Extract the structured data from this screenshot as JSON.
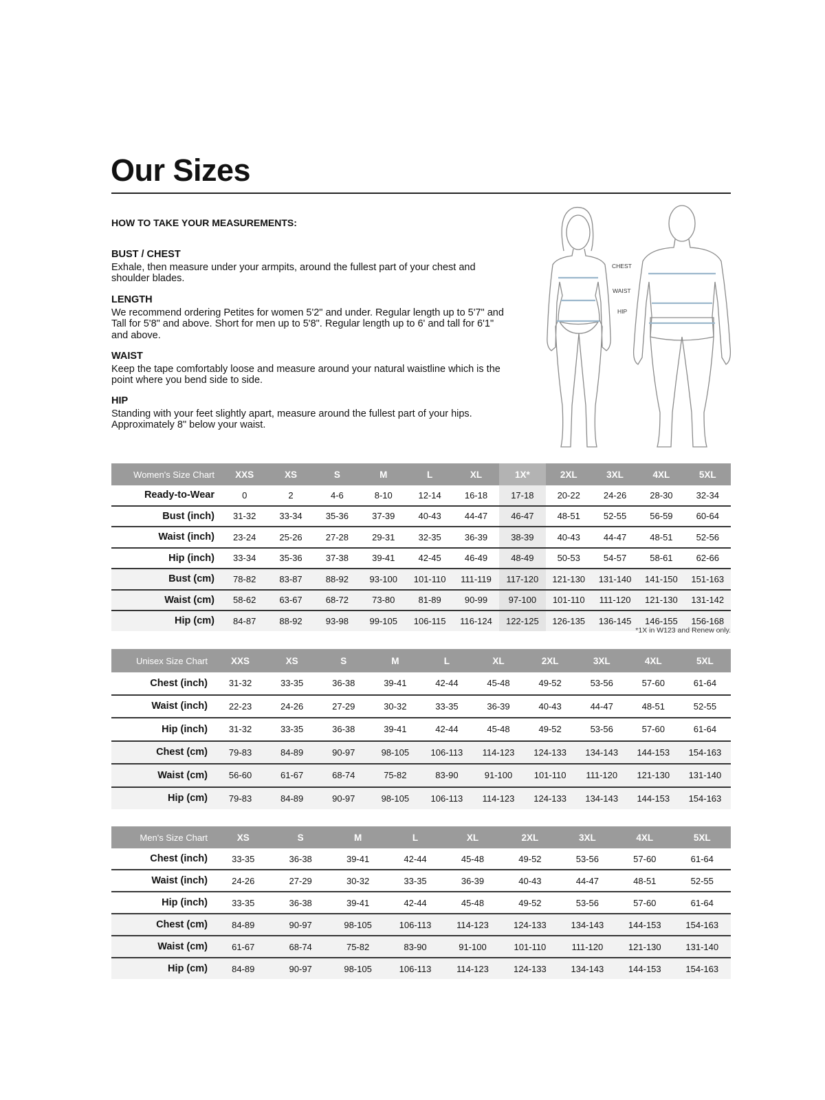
{
  "title": "Our Sizes",
  "how_to": "HOW TO TAKE YOUR MEASUREMENTS:",
  "sections": [
    {
      "heading": "BUST / CHEST",
      "text": "Exhale, then measure under your armpits, around the fullest part of your chest and shoulder blades."
    },
    {
      "heading": "LENGTH",
      "text": "We recommend ordering Petites for women 5'2\" and under. Regular length up to 5'7\" and Tall for 5'8\" and above. Short for men up to 5'8\". Regular length up to 6' and tall for 6'1\" and above."
    },
    {
      "heading": "WAIST",
      "text": "Keep the tape comfortably loose and measure around your natural waistline which is the point where you bend side to side."
    },
    {
      "heading": "HIP",
      "text": "Standing with your feet slightly apart, measure around the fullest part of your hips. Approximately 8\" below your waist."
    }
  ],
  "figure_labels": {
    "chest": "CHEST",
    "waist": "WAIST",
    "hip": "HIP"
  },
  "colors": {
    "header_bg": "#9b9b9b",
    "cm_row_bg": "#f2f2f2",
    "highlight": "#ebebeb",
    "measure_line": "#9bb7cc"
  },
  "tables": {
    "women": {
      "label": "Women's Size Chart",
      "highlight_column": "1X*",
      "columns": [
        "XXS",
        "XS",
        "S",
        "M",
        "L",
        "XL",
        "1X*",
        "2XL",
        "3XL",
        "4XL",
        "5XL"
      ],
      "rows": [
        {
          "label": "Ready-to-Wear",
          "values": [
            "0",
            "2",
            "4-6",
            "8-10",
            "12-14",
            "16-18",
            "17-18",
            "20-22",
            "24-26",
            "28-30",
            "32-34"
          ]
        },
        {
          "label": "Bust (inch)",
          "values": [
            "31-32",
            "33-34",
            "35-36",
            "37-39",
            "40-43",
            "44-47",
            "46-47",
            "48-51",
            "52-55",
            "56-59",
            "60-64"
          ]
        },
        {
          "label": "Waist (inch)",
          "values": [
            "23-24",
            "25-26",
            "27-28",
            "29-31",
            "32-35",
            "36-39",
            "38-39",
            "40-43",
            "44-47",
            "48-51",
            "52-56"
          ]
        },
        {
          "label": "Hip (inch)",
          "values": [
            "33-34",
            "35-36",
            "37-38",
            "39-41",
            "42-45",
            "46-49",
            "48-49",
            "50-53",
            "54-57",
            "58-61",
            "62-66"
          ]
        },
        {
          "label": "Bust (cm)",
          "values": [
            "78-82",
            "83-87",
            "88-92",
            "93-100",
            "101-110",
            "111-119",
            "117-120",
            "121-130",
            "131-140",
            "141-150",
            "151-163"
          ]
        },
        {
          "label": "Waist (cm)",
          "values": [
            "58-62",
            "63-67",
            "68-72",
            "73-80",
            "81-89",
            "90-99",
            "97-100",
            "101-110",
            "111-120",
            "121-130",
            "131-142"
          ]
        },
        {
          "label": "Hip (cm)",
          "values": [
            "84-87",
            "88-92",
            "93-98",
            "99-105",
            "106-115",
            "116-124",
            "122-125",
            "126-135",
            "136-145",
            "146-155",
            "156-168"
          ]
        }
      ],
      "footnote": "*1X in W123 and Renew only."
    },
    "unisex": {
      "label": "Unisex Size Chart",
      "columns": [
        "XXS",
        "XS",
        "S",
        "M",
        "L",
        "XL",
        "2XL",
        "3XL",
        "4XL",
        "5XL"
      ],
      "rows": [
        {
          "label": "Chest (inch)",
          "values": [
            "31-32",
            "33-35",
            "36-38",
            "39-41",
            "42-44",
            "45-48",
            "49-52",
            "53-56",
            "57-60",
            "61-64"
          ]
        },
        {
          "label": "Waist (inch)",
          "values": [
            "22-23",
            "24-26",
            "27-29",
            "30-32",
            "33-35",
            "36-39",
            "40-43",
            "44-47",
            "48-51",
            "52-55"
          ]
        },
        {
          "label": "Hip (inch)",
          "values": [
            "31-32",
            "33-35",
            "36-38",
            "39-41",
            "42-44",
            "45-48",
            "49-52",
            "53-56",
            "57-60",
            "61-64"
          ]
        },
        {
          "label": "Chest (cm)",
          "values": [
            "79-83",
            "84-89",
            "90-97",
            "98-105",
            "106-113",
            "114-123",
            "124-133",
            "134-143",
            "144-153",
            "154-163"
          ]
        },
        {
          "label": "Waist (cm)",
          "values": [
            "56-60",
            "61-67",
            "68-74",
            "75-82",
            "83-90",
            "91-100",
            "101-110",
            "111-120",
            "121-130",
            "131-140"
          ]
        },
        {
          "label": "Hip (cm)",
          "values": [
            "79-83",
            "84-89",
            "90-97",
            "98-105",
            "106-113",
            "114-123",
            "124-133",
            "134-143",
            "144-153",
            "154-163"
          ]
        }
      ]
    },
    "men": {
      "label": "Men's Size Chart",
      "columns": [
        "XS",
        "S",
        "M",
        "L",
        "XL",
        "2XL",
        "3XL",
        "4XL",
        "5XL"
      ],
      "rows": [
        {
          "label": "Chest (inch)",
          "values": [
            "33-35",
            "36-38",
            "39-41",
            "42-44",
            "45-48",
            "49-52",
            "53-56",
            "57-60",
            "61-64"
          ]
        },
        {
          "label": "Waist (inch)",
          "values": [
            "24-26",
            "27-29",
            "30-32",
            "33-35",
            "36-39",
            "40-43",
            "44-47",
            "48-51",
            "52-55"
          ]
        },
        {
          "label": "Hip (inch)",
          "values": [
            "33-35",
            "36-38",
            "39-41",
            "42-44",
            "45-48",
            "49-52",
            "53-56",
            "57-60",
            "61-64"
          ]
        },
        {
          "label": "Chest (cm)",
          "values": [
            "84-89",
            "90-97",
            "98-105",
            "106-113",
            "114-123",
            "124-133",
            "134-143",
            "144-153",
            "154-163"
          ]
        },
        {
          "label": "Waist (cm)",
          "values": [
            "61-67",
            "68-74",
            "75-82",
            "83-90",
            "91-100",
            "101-110",
            "111-120",
            "121-130",
            "131-140"
          ]
        },
        {
          "label": "Hip (cm)",
          "values": [
            "84-89",
            "90-97",
            "98-105",
            "106-113",
            "114-123",
            "124-133",
            "134-143",
            "144-153",
            "154-163"
          ]
        }
      ]
    }
  }
}
